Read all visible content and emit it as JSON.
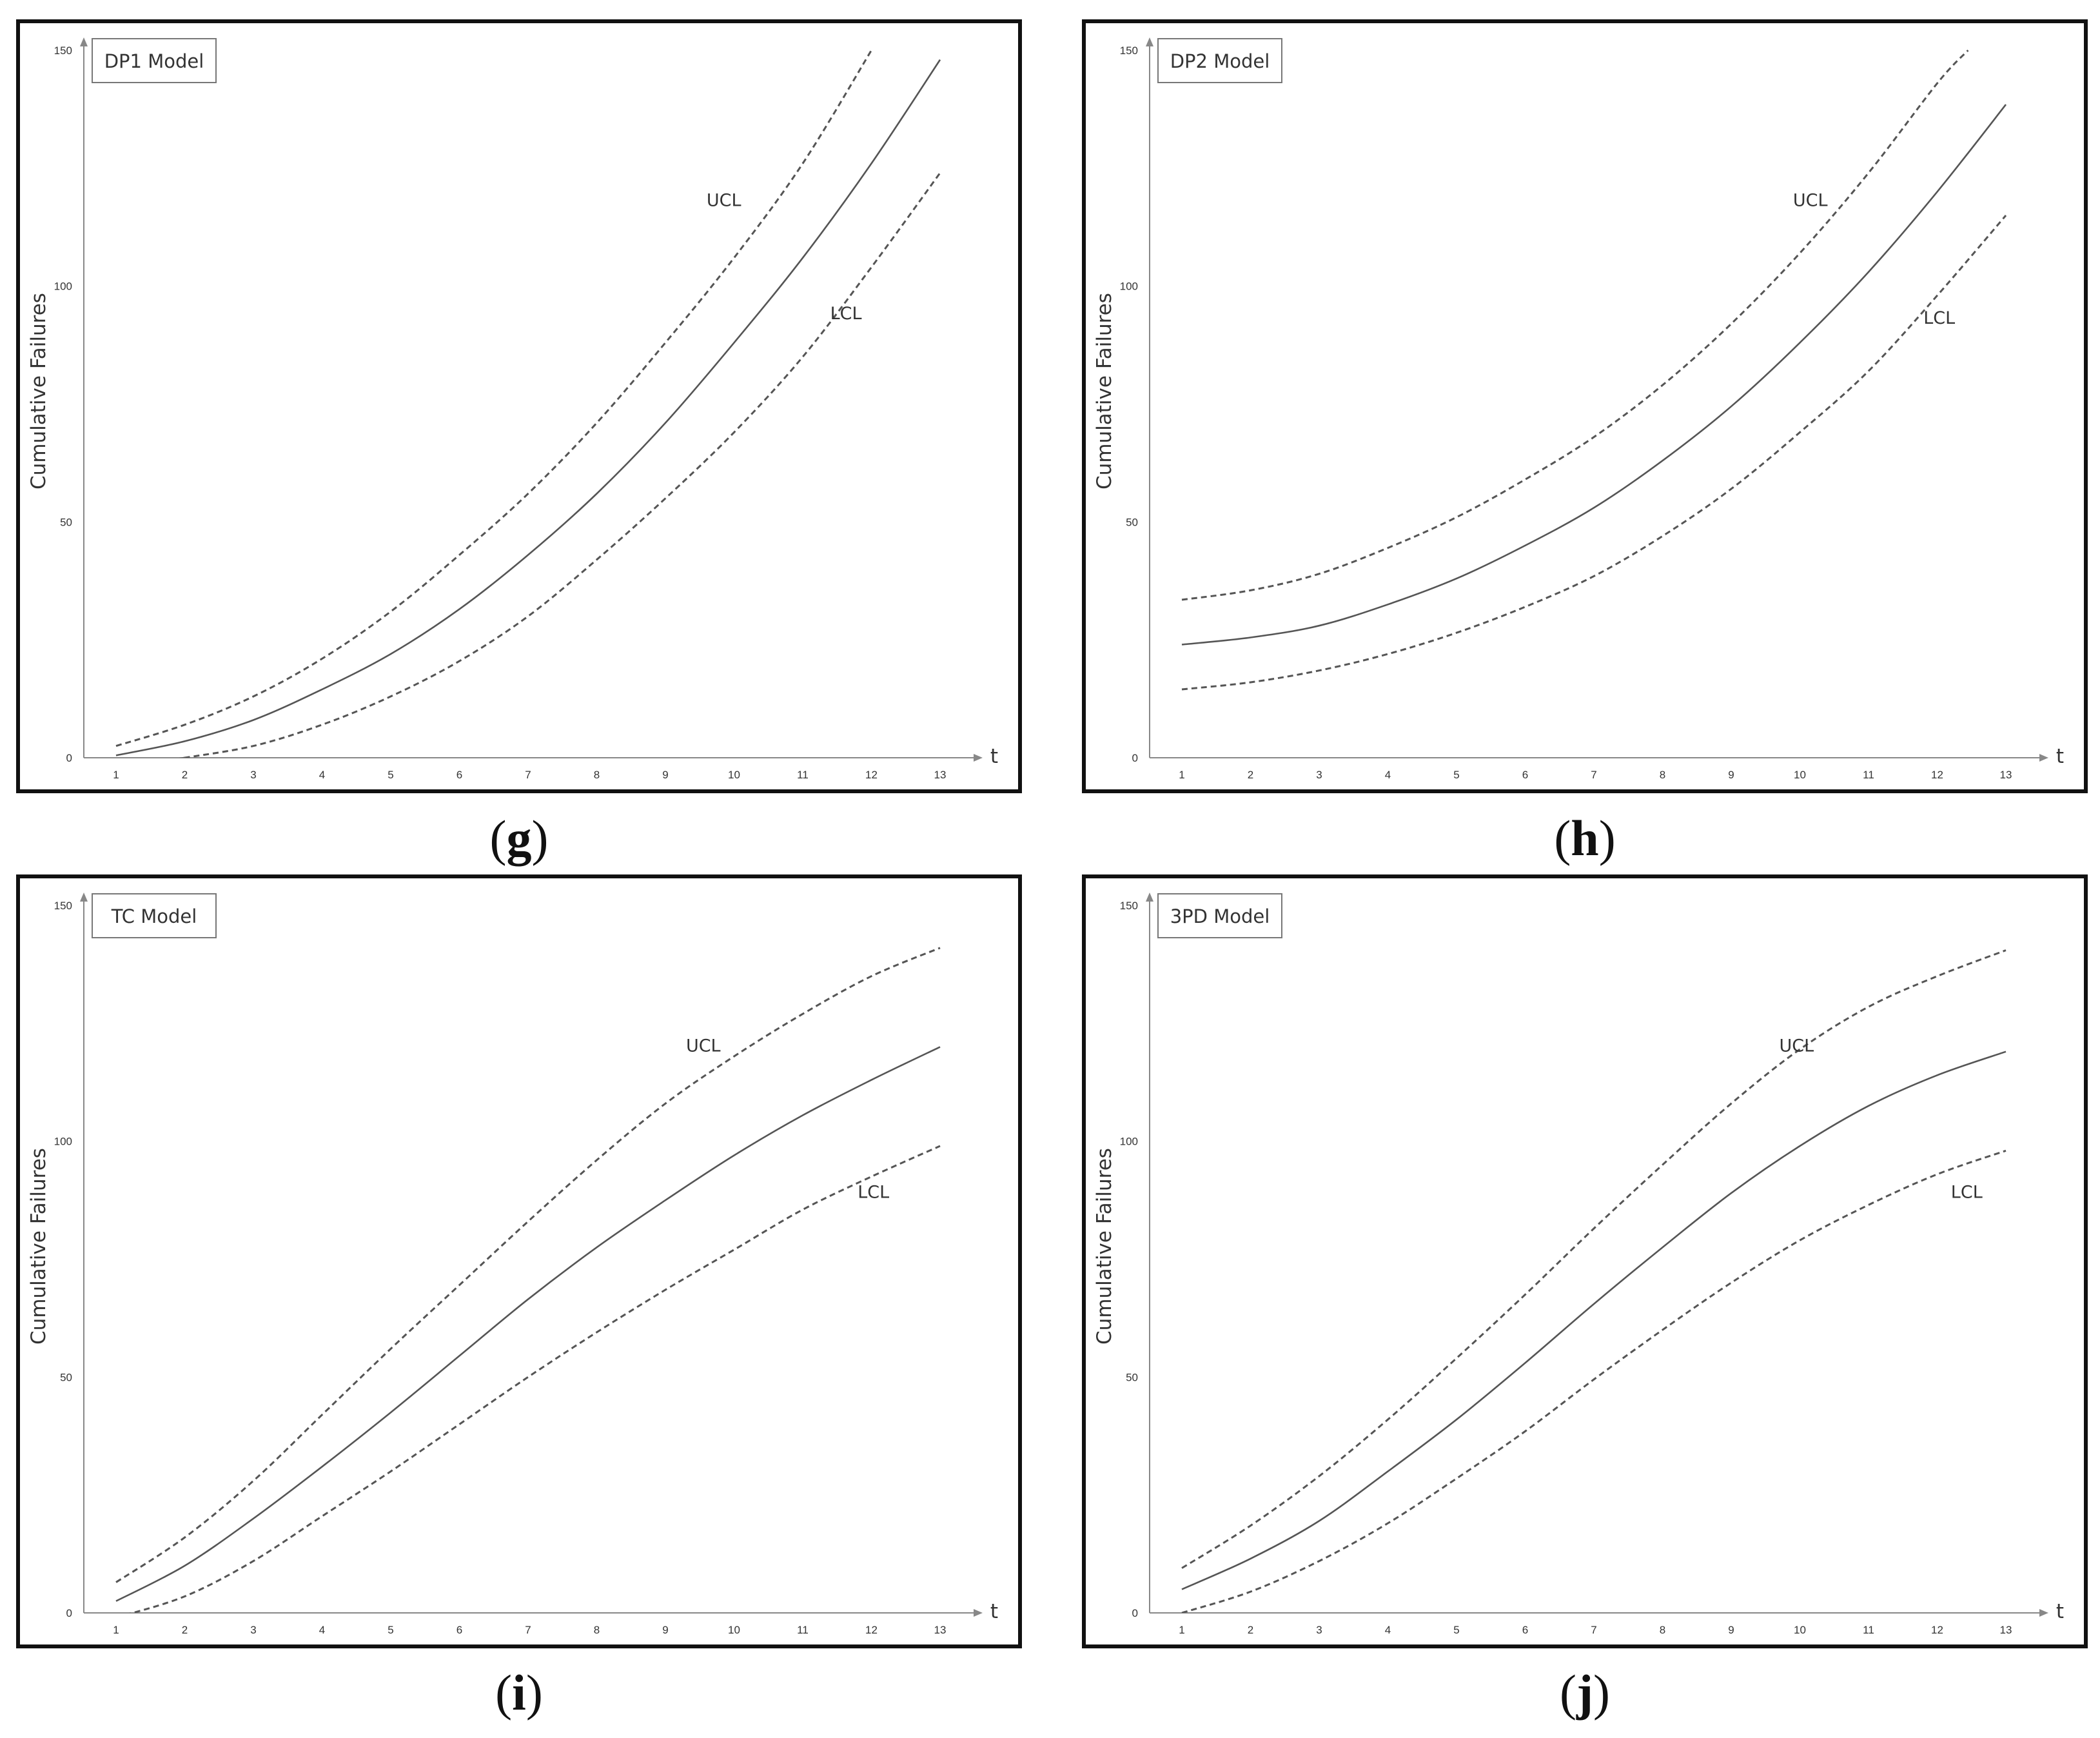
{
  "captions": [
    "g",
    "h",
    "i",
    "j"
  ],
  "chart_data": [
    {
      "type": "line",
      "title": "DP1 Model",
      "xlabel": "t",
      "ylabel": "Cumulative Failures",
      "x": [
        1,
        2,
        3,
        4,
        5,
        6,
        7,
        8,
        9,
        10,
        11,
        12,
        13
      ],
      "xlim": [
        0.5,
        13.5
      ],
      "ylim": [
        0,
        150
      ],
      "yticks": [
        0,
        50,
        100,
        150
      ],
      "legend": "top-left",
      "grid": false,
      "series": [
        {
          "name": "UCL",
          "style": "dashed",
          "values": [
            2.5,
            7,
            13,
            21,
            31,
            43,
            56,
            71,
            88,
            106,
            126,
            null,
            null
          ]
        },
        {
          "name": "",
          "style": "solid",
          "values": [
            0.5,
            3.5,
            8,
            14.5,
            22,
            31.5,
            43,
            56,
            71,
            88,
            106,
            126,
            148
          ]
        },
        {
          "name": "LCL",
          "style": "dashed",
          "values": [
            null,
            0,
            2.5,
            7,
            13,
            20.5,
            30,
            42,
            55,
            69,
            85,
            104,
            124
          ]
        }
      ],
      "extra_points": {
        "UCL": [
          [
            12,
            150
          ]
        ],
        "LCL": [
          [
            2,
            0
          ]
        ]
      },
      "annotations": [
        {
          "text": "UCL",
          "x": 9.6,
          "y": 117
        },
        {
          "text": "LCL",
          "x": 11.4,
          "y": 93
        }
      ]
    },
    {
      "type": "line",
      "title": "DP2 Model",
      "xlabel": "t",
      "ylabel": "Cumulative Failures",
      "x": [
        1,
        2,
        3,
        4,
        5,
        6,
        7,
        8,
        9,
        10,
        11,
        12,
        13
      ],
      "xlim": [
        0.5,
        13.5
      ],
      "ylim": [
        0,
        150
      ],
      "yticks": [
        0,
        50,
        100,
        150
      ],
      "legend": "top-left",
      "grid": false,
      "series": [
        {
          "name": "UCL",
          "style": "dashed",
          "values": [
            33.5,
            35.5,
            39,
            44.5,
            51,
            59,
            68,
            79,
            92,
            107,
            124,
            143,
            null
          ]
        },
        {
          "name": "",
          "style": "solid",
          "values": [
            24,
            25.5,
            28,
            32.5,
            38,
            45,
            53,
            63,
            74.5,
            88,
            103,
            120,
            138.5
          ]
        },
        {
          "name": "LCL",
          "style": "dashed",
          "values": [
            14.5,
            16,
            18.5,
            22,
            26.5,
            32,
            38.5,
            47,
            57,
            69,
            82,
            98,
            115
          ]
        }
      ],
      "extra_points": {
        "UCL": [
          [
            12.45,
            150
          ]
        ]
      },
      "annotations": [
        {
          "text": "UCL",
          "x": 9.9,
          "y": 117
        },
        {
          "text": "LCL",
          "x": 11.8,
          "y": 92
        }
      ]
    },
    {
      "type": "line",
      "title": "TC Model",
      "xlabel": "t",
      "ylabel": "Cumulative Failures",
      "x": [
        1,
        2,
        3,
        4,
        5,
        6,
        7,
        8,
        9,
        10,
        11,
        12,
        13
      ],
      "xlim": [
        0.5,
        13.5
      ],
      "ylim": [
        0,
        150
      ],
      "yticks": [
        0,
        50,
        100,
        150
      ],
      "legend": "top-left",
      "grid": false,
      "series": [
        {
          "name": "UCL",
          "style": "dashed",
          "values": [
            6.5,
            16,
            28,
            42,
            56,
            69.5,
            83,
            96,
            108,
            118,
            127,
            135,
            141
          ]
        },
        {
          "name": "",
          "style": "solid",
          "values": [
            2.5,
            10,
            20,
            31,
            42.5,
            54.5,
            66.5,
            77.5,
            87.5,
            97,
            105.5,
            113,
            120
          ]
        },
        {
          "name": "LCL",
          "style": "dashed",
          "values": [
            -1,
            3.5,
            11,
            20.5,
            30,
            40,
            50,
            59.5,
            68.5,
            77,
            85.5,
            92.5,
            99
          ]
        }
      ],
      "annotations": [
        {
          "text": "UCL",
          "x": 9.3,
          "y": 119
        },
        {
          "text": "LCL",
          "x": 11.8,
          "y": 88
        }
      ]
    },
    {
      "type": "line",
      "title": "3PD Model",
      "xlabel": "t",
      "ylabel": "Cumulative Failures",
      "x": [
        1,
        2,
        3,
        4,
        5,
        6,
        7,
        8,
        9,
        10,
        11,
        12,
        13
      ],
      "xlim": [
        0.5,
        13.5
      ],
      "ylim": [
        0,
        150
      ],
      "yticks": [
        0,
        50,
        100,
        150
      ],
      "legend": "top-left",
      "grid": false,
      "series": [
        {
          "name": "UCL",
          "style": "dashed",
          "values": [
            9.5,
            18.5,
            29,
            41,
            54,
            67.5,
            81.5,
            95,
            108,
            119.5,
            128.5,
            135,
            140.5
          ]
        },
        {
          "name": "",
          "style": "solid",
          "values": [
            5,
            11.5,
            19.5,
            30,
            41,
            53,
            65.5,
            77.5,
            89,
            99,
            107.5,
            114,
            119
          ]
        },
        {
          "name": "LCL",
          "style": "dashed",
          "values": [
            0,
            4.5,
            11,
            19,
            28.5,
            38.5,
            49.5,
            60,
            70,
            79,
            86.5,
            93,
            98
          ]
        }
      ],
      "annotations": [
        {
          "text": "UCL",
          "x": 9.7,
          "y": 119
        },
        {
          "text": "LCL",
          "x": 12.2,
          "y": 88
        }
      ]
    }
  ]
}
